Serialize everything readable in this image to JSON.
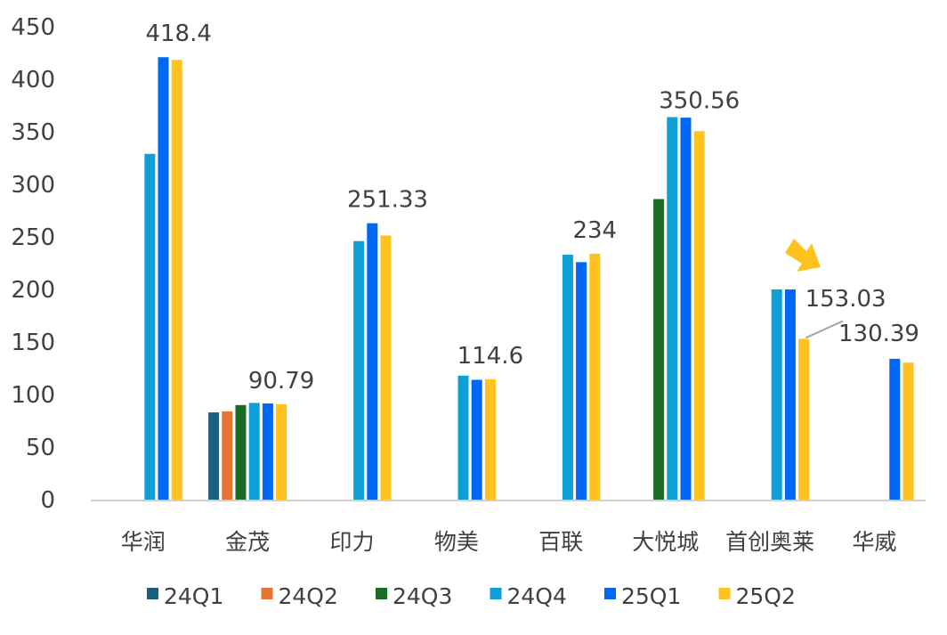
{
  "chart_data": {
    "type": "bar",
    "title": "",
    "xlabel": "",
    "ylabel": "",
    "ylim": [
      0,
      450
    ],
    "yticks": [
      0,
      50,
      100,
      150,
      200,
      250,
      300,
      350,
      400,
      450
    ],
    "grid": false,
    "legend_position": "bottom",
    "categories": [
      "华润",
      "金茂",
      "印力",
      "物美",
      "百联",
      "大悦城",
      "首创奥莱",
      "华威"
    ],
    "series": [
      {
        "name": "24Q1",
        "color": "#1a5e82",
        "values": [
          null,
          83,
          null,
          null,
          null,
          null,
          null,
          null
        ]
      },
      {
        "name": "24Q2",
        "color": "#e87434",
        "values": [
          null,
          84,
          null,
          null,
          null,
          null,
          null,
          null
        ]
      },
      {
        "name": "24Q3",
        "color": "#1a6b25",
        "values": [
          null,
          90,
          null,
          null,
          null,
          286,
          null,
          null
        ]
      },
      {
        "name": "24Q4",
        "color": "#0e9ed8",
        "values": [
          329,
          92,
          246,
          118,
          233,
          364,
          200,
          null
        ]
      },
      {
        "name": "25Q1",
        "color": "#0068f5",
        "values": [
          421,
          91.5,
          263,
          114,
          226,
          363.5,
          200,
          134
        ]
      },
      {
        "name": "25Q2",
        "color": "#ffc21e",
        "values": [
          418.4,
          90.79,
          251.33,
          114.6,
          234,
          350.56,
          153.03,
          130.39
        ]
      }
    ],
    "data_labels": [
      "418.4",
      "90.79",
      "251.33",
      "114.6",
      "234",
      "350.56",
      "153.03",
      "130.39"
    ],
    "annotation": {
      "type": "arrow",
      "color": "#ffc21e",
      "target": "首创奥莱"
    }
  }
}
